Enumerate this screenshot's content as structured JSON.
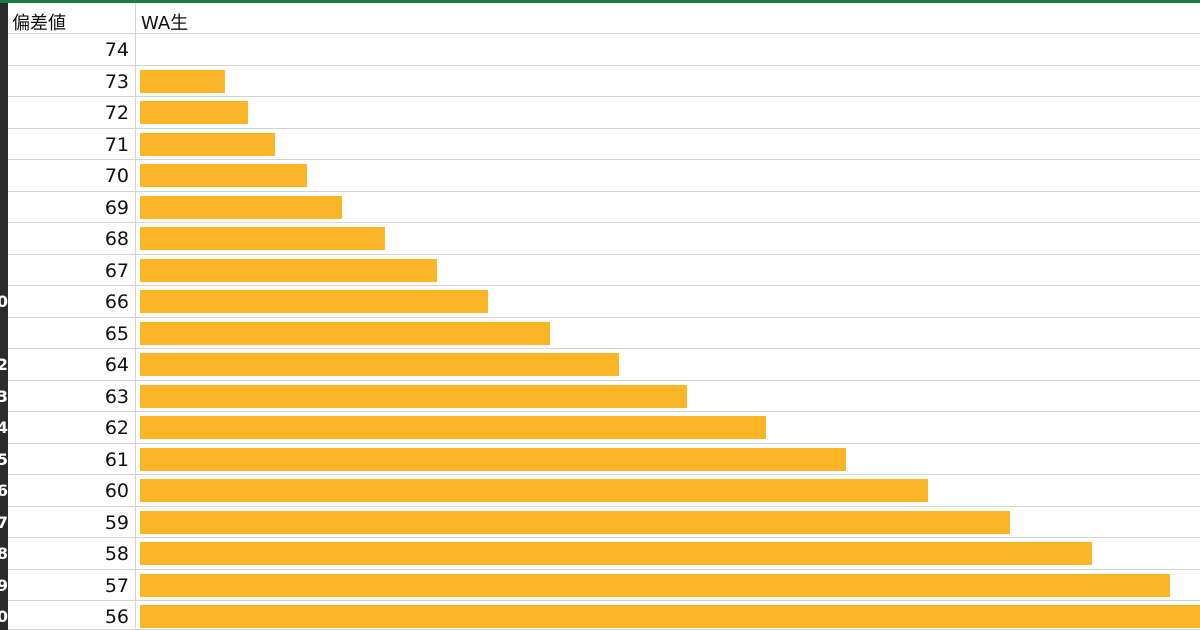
{
  "sheet": {
    "header_a": "偏差値",
    "header_b": "WA生",
    "row_number_digits": [
      "",
      "",
      "",
      "",
      "",
      "",
      "",
      "",
      "0",
      "",
      "2",
      "3",
      "4",
      "5",
      "6",
      "7",
      "8",
      "9",
      "0"
    ]
  },
  "colors": {
    "bar": "#fdb528",
    "grid": "#d4d4d4",
    "accent": "#1f7a44"
  },
  "chart_data": {
    "type": "bar",
    "orientation": "horizontal",
    "categories": [
      "74",
      "73",
      "72",
      "71",
      "70",
      "69",
      "68",
      "67",
      "66",
      "65",
      "64",
      "63",
      "62",
      "61",
      "60",
      "59",
      "58",
      "57",
      "56"
    ],
    "series": [
      {
        "values": [
          0,
          85,
          108,
          135,
          167,
          202,
          245,
          298,
          349,
          411,
          480,
          548,
          627,
          707,
          789,
          872,
          954,
          1032,
          1062
        ]
      }
    ],
    "xlim": [
      0,
      1062
    ],
    "title": "",
    "xlabel": "",
    "ylabel": ""
  }
}
